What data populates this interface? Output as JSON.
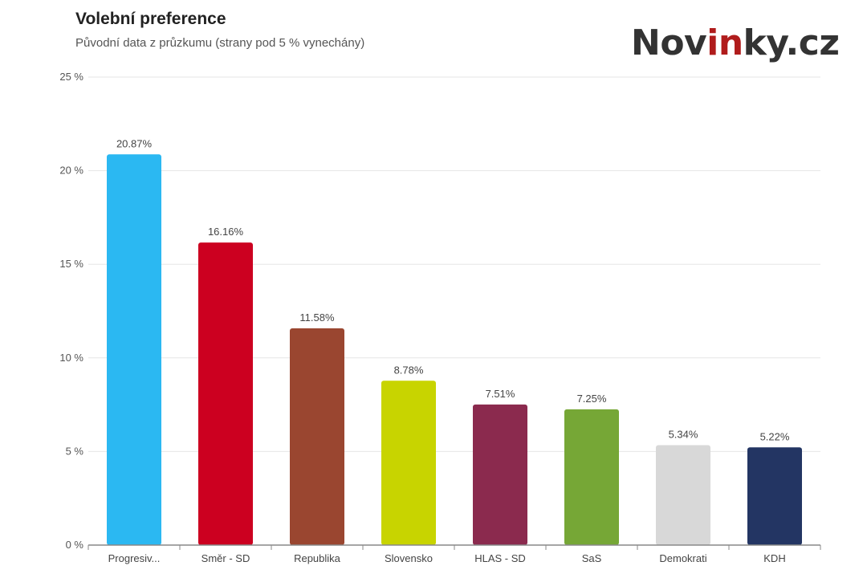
{
  "logo": {
    "text_pre": "Nov",
    "text_accent": "in",
    "text_post": "ky.cz",
    "full": "Novinky.cz"
  },
  "chart_data": {
    "type": "bar",
    "title": "Volební preference",
    "subtitle": "Původní data z průzkumu (strany pod 5 % vynechány)",
    "categories": [
      "Progresiv...",
      "Směr - SD",
      "Republika",
      "Slovensko",
      "HLAS - SD",
      "SaS",
      "Demokrati",
      "KDH"
    ],
    "values": [
      20.87,
      16.16,
      11.58,
      8.78,
      7.51,
      7.25,
      5.34,
      5.22
    ],
    "data_labels": [
      "20.87%",
      "16.16%",
      "11.58%",
      "8.78%",
      "7.51%",
      "7.25%",
      "5.34%",
      "5.22%"
    ],
    "colors": [
      "#2bb8f2",
      "#cc0020",
      "#9a4630",
      "#c8d400",
      "#8b2a4e",
      "#76a736",
      "#d8d8d8",
      "#233563"
    ],
    "ylim": [
      0,
      25
    ],
    "yticks": [
      0,
      5,
      10,
      15,
      20,
      25
    ],
    "ytick_labels": [
      "0 %",
      "5 %",
      "10 %",
      "15 %",
      "20 %",
      "25 %"
    ],
    "grid": true,
    "legend": "none",
    "xlabel": "",
    "ylabel": ""
  }
}
